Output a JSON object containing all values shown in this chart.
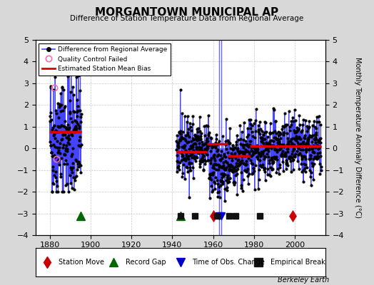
{
  "title": "MORGANTOWN MUNICIPAL AP",
  "subtitle": "Difference of Station Temperature Data from Regional Average",
  "ylabel": "Monthly Temperature Anomaly Difference (°C)",
  "credit": "Berkeley Earth",
  "ylim": [
    -4,
    5
  ],
  "yticks_left": [
    -4,
    -3,
    -2,
    -1,
    0,
    1,
    2,
    3,
    4,
    5
  ],
  "yticks_right": [
    -4,
    -3,
    -2,
    -1,
    0,
    1,
    2,
    3,
    4,
    5
  ],
  "xlim": [
    1873,
    2015
  ],
  "xticks": [
    1880,
    1900,
    1920,
    1940,
    1960,
    1980,
    2000
  ],
  "bg_color": "#d8d8d8",
  "plot_bg_color": "#ffffff",
  "main_line_color": "#4444ff",
  "main_dot_color": "#000000",
  "bias_line_color": "#dd0000",
  "qc_marker_color": "#ff69b4",
  "station_move_color": "#cc0000",
  "record_gap_color": "#006600",
  "tobs_color": "#0000cc",
  "emp_break_color": "#111111",
  "seed": 42,
  "period1_start": 1880.0,
  "period1_end": 1895.5,
  "period2_start": 1942.0,
  "period2_end": 2013.0,
  "station_moves": [
    1960,
    1999
  ],
  "record_gaps": [
    1895,
    1944
  ],
  "tobs_changes": [
    1963,
    1964
  ],
  "emp_breaks": [
    1944,
    1951,
    1962,
    1968,
    1971,
    1983
  ],
  "bias_segments": [
    {
      "start": 1880,
      "end": 1895.5,
      "value": 0.75
    },
    {
      "start": 1942,
      "end": 1957,
      "value": -0.15
    },
    {
      "start": 1957,
      "end": 1967,
      "value": 0.2
    },
    {
      "start": 1967,
      "end": 1978,
      "value": -0.35
    },
    {
      "start": 1978,
      "end": 2013,
      "value": 0.1
    }
  ],
  "marker_y": -3.1
}
